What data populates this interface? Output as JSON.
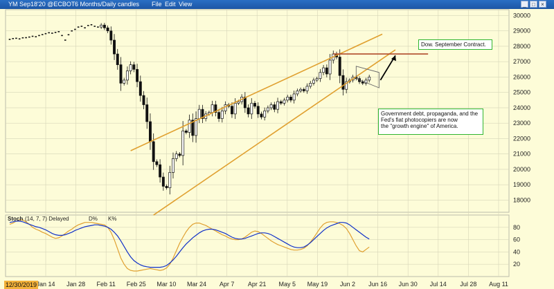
{
  "window": {
    "title": "YM Sep18'20 @ECBOT",
    "interval": "6 Months/Daily candles",
    "menu": [
      "File",
      "Edit",
      "View"
    ]
  },
  "annotations": {
    "contract_note": "Dow. September Contract.",
    "debt_note_lines": [
      "Government debt, propaganda, and the",
      "Fed's fiat photocopiers are now",
      "the \"growth engine\" of America."
    ]
  },
  "stoch_legend": {
    "label": "Stoch",
    "params": "(14, 7, 7) Delayed",
    "d_label": "D%",
    "k_label": "K%"
  },
  "date_highlight": "12/30/2019",
  "colors": {
    "background": "#fdfcd8",
    "channel": "#e0a030",
    "resistance": "#b04a2a",
    "d_line": "#1030c8",
    "k_line": "#e0a030",
    "candle": "#111111",
    "note_border": "#2fb52f"
  },
  "chart_data": [
    {
      "type": "candlestick",
      "x_tick_labels": [
        "Jan 14",
        "Jan 28",
        "Feb 11",
        "Feb 25",
        "Mar 10",
        "Mar 24",
        "Apr 7",
        "Apr 21",
        "May 5",
        "May 19",
        "Jun 2",
        "Jun 16",
        "Jun 30",
        "Jul 14",
        "Jul 28",
        "Aug 11"
      ],
      "y_ticks": [
        18000,
        19000,
        20000,
        21000,
        22000,
        23000,
        24000,
        25000,
        26000,
        27000,
        28000,
        29000,
        30000
      ],
      "ylim": [
        17300,
        30200
      ],
      "grid": true,
      "closes": [
        28450,
        28500,
        28520,
        28480,
        28550,
        28560,
        28600,
        28650,
        28620,
        28700,
        28760,
        28820,
        28880,
        28850,
        28900,
        28950,
        28700,
        28400,
        28750,
        29000,
        29100,
        29250,
        29300,
        29200,
        29350,
        29400,
        29300,
        29250,
        29380,
        29200,
        29000,
        28400,
        27500,
        26800,
        25600,
        25800,
        26400,
        26800,
        26500,
        25700,
        24800,
        24200,
        23100,
        21800,
        20500,
        20300,
        19500,
        18900,
        18800,
        19800,
        20700,
        21000,
        20900,
        22500,
        22400,
        23200,
        22200,
        23300,
        23900,
        23300,
        23600,
        23700,
        24200,
        23700,
        23300,
        23800,
        24200,
        24100,
        23600,
        24300,
        24400,
        24700,
        24000,
        23600,
        24300,
        24100,
        23600,
        23400,
        23800,
        24000,
        24200,
        23900,
        24400,
        24300,
        24500,
        24700,
        24500,
        24900,
        25100,
        25200,
        25100,
        25400,
        25600,
        25800,
        25900,
        26300,
        26600,
        26200,
        27100,
        27500,
        27300,
        26100,
        25200,
        25700,
        25800,
        26000,
        25900,
        25700,
        25600,
        25800,
        26000
      ],
      "annotations": {
        "rising_channel_upper": {
          "start": {
            "i": 43,
            "y": 21800
          },
          "end": {
            "i": 108,
            "y": 28200
          }
        },
        "rising_channel_lower": {
          "start": {
            "i": 50,
            "y": 17900
          },
          "end": {
            "i": 112,
            "y": 26900
          }
        },
        "resistance": {
          "y": 27500
        },
        "pennant": true,
        "arrow": true
      }
    },
    {
      "type": "line",
      "title": "Stoch (14, 7, 7) Delayed",
      "y_ticks": [
        20,
        40,
        60,
        80
      ],
      "ylim": [
        0,
        100
      ],
      "series": [
        {
          "name": "D%",
          "values": [
            88,
            89,
            90,
            90,
            89,
            87,
            85,
            83,
            81,
            80,
            78,
            76,
            73,
            70,
            68,
            67,
            67,
            68,
            70,
            72,
            75,
            77,
            79,
            81,
            82,
            83,
            84,
            84,
            83,
            82,
            80,
            77,
            72,
            66,
            58,
            49,
            40,
            32,
            26,
            22,
            19,
            17,
            16,
            15,
            15,
            15,
            15,
            16,
            18,
            22,
            27,
            33,
            40,
            47,
            53,
            58,
            63,
            67,
            71,
            74,
            76,
            77,
            77,
            76,
            74,
            72,
            70,
            67,
            64,
            62,
            61,
            61,
            62,
            64,
            66,
            68,
            70,
            71,
            71,
            70,
            68,
            65,
            62,
            59,
            56,
            53,
            50,
            48,
            47,
            47,
            48,
            51,
            55,
            60,
            65,
            70,
            75,
            79,
            82,
            84,
            86,
            88,
            88,
            87,
            84,
            80,
            76,
            72,
            68,
            64,
            61
          ]
        },
        {
          "name": "K%",
          "values": [
            85,
            87,
            90,
            92,
            92,
            89,
            85,
            80,
            77,
            75,
            72,
            70,
            67,
            64,
            62,
            63,
            66,
            70,
            74,
            77,
            81,
            84,
            86,
            88,
            88,
            88,
            87,
            86,
            85,
            84,
            80,
            72,
            60,
            45,
            30,
            20,
            13,
            10,
            9,
            9,
            10,
            11,
            12,
            13,
            12,
            11,
            10,
            11,
            14,
            20,
            30,
            42,
            54,
            64,
            73,
            80,
            85,
            87,
            87,
            85,
            83,
            80,
            77,
            74,
            71,
            68,
            66,
            63,
            61,
            60,
            60,
            61,
            64,
            68,
            72,
            74,
            73,
            70,
            66,
            62,
            58,
            55,
            52,
            50,
            48,
            46,
            44,
            43,
            43,
            44,
            46,
            50,
            56,
            63,
            71,
            79,
            85,
            88,
            89,
            89,
            88,
            86,
            83,
            78,
            70,
            60,
            50,
            42,
            40,
            44,
            48
          ]
        }
      ]
    }
  ]
}
